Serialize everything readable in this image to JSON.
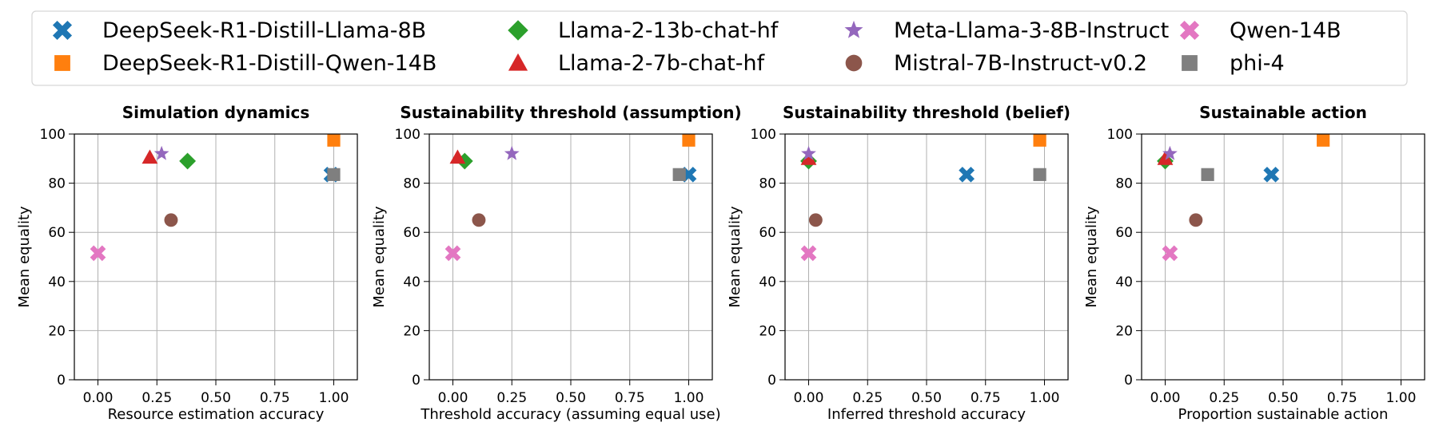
{
  "legend": {
    "placement": "top-center",
    "items": [
      {
        "name": "DeepSeek-R1-Distill-Llama-8B",
        "color": "#1f77b4",
        "marker": "x"
      },
      {
        "name": "DeepSeek-R1-Distill-Qwen-14B",
        "color": "#ff7f0e",
        "marker": "square"
      },
      {
        "name": "Llama-2-13b-chat-hf",
        "color": "#2ca02c",
        "marker": "diamond"
      },
      {
        "name": "Llama-2-7b-chat-hf",
        "color": "#d62728",
        "marker": "triangle"
      },
      {
        "name": "Meta-Llama-3-8B-Instruct",
        "color": "#9467bd",
        "marker": "star"
      },
      {
        "name": "Mistral-7B-Instruct-v0.2",
        "color": "#8c564b",
        "marker": "circle"
      },
      {
        "name": "Qwen-14B",
        "color": "#e377c2",
        "marker": "x"
      },
      {
        "name": "phi-4",
        "color": "#7f7f7f",
        "marker": "square"
      }
    ]
  },
  "chart_data": [
    {
      "type": "scatter",
      "title": "Simulation dynamics",
      "xlabel": "Resource estimation accuracy",
      "ylabel": "Mean equality",
      "xlim": [
        -0.1,
        1.1
      ],
      "ylim": [
        0,
        100
      ],
      "xticks": [
        "0.00",
        "0.25",
        "0.50",
        "0.75",
        "1.00"
      ],
      "yticks": [
        "0",
        "20",
        "40",
        "60",
        "80",
        "100"
      ],
      "grid": true,
      "points": [
        {
          "series": "DeepSeek-R1-Distill-Llama-8B",
          "x": 0.99,
          "y": 83.5
        },
        {
          "series": "DeepSeek-R1-Distill-Qwen-14B",
          "x": 1.0,
          "y": 97.5
        },
        {
          "series": "Llama-2-13b-chat-hf",
          "x": 0.38,
          "y": 89
        },
        {
          "series": "Llama-2-7b-chat-hf",
          "x": 0.22,
          "y": 90.5
        },
        {
          "series": "Meta-Llama-3-8B-Instruct",
          "x": 0.27,
          "y": 92
        },
        {
          "series": "Mistral-7B-Instruct-v0.2",
          "x": 0.31,
          "y": 65
        },
        {
          "series": "Qwen-14B",
          "x": 0.0,
          "y": 51.5
        },
        {
          "series": "phi-4",
          "x": 1.0,
          "y": 83.5
        }
      ]
    },
    {
      "type": "scatter",
      "title": "Sustainability threshold (assumption)",
      "xlabel": "Threshold accuracy (assuming equal use)",
      "ylabel": "Mean equality",
      "xlim": [
        -0.1,
        1.1
      ],
      "ylim": [
        0,
        100
      ],
      "xticks": [
        "0.00",
        "0.25",
        "0.50",
        "0.75",
        "1.00"
      ],
      "yticks": [
        "0",
        "20",
        "40",
        "60",
        "80",
        "100"
      ],
      "grid": true,
      "points": [
        {
          "series": "DeepSeek-R1-Distill-Llama-8B",
          "x": 1.0,
          "y": 83.5
        },
        {
          "series": "DeepSeek-R1-Distill-Qwen-14B",
          "x": 1.0,
          "y": 97.5
        },
        {
          "series": "Llama-2-13b-chat-hf",
          "x": 0.05,
          "y": 89
        },
        {
          "series": "Llama-2-7b-chat-hf",
          "x": 0.02,
          "y": 90.5
        },
        {
          "series": "Meta-Llama-3-8B-Instruct",
          "x": 0.25,
          "y": 92
        },
        {
          "series": "Mistral-7B-Instruct-v0.2",
          "x": 0.11,
          "y": 65
        },
        {
          "series": "Qwen-14B",
          "x": 0.0,
          "y": 51.5
        },
        {
          "series": "phi-4",
          "x": 0.96,
          "y": 83.5
        }
      ]
    },
    {
      "type": "scatter",
      "title": "Sustainability threshold (belief)",
      "xlabel": "Inferred threshold accuracy",
      "ylabel": "Mean equality",
      "xlim": [
        -0.1,
        1.1
      ],
      "ylim": [
        0,
        100
      ],
      "xticks": [
        "0.00",
        "0.25",
        "0.50",
        "0.75",
        "1.00"
      ],
      "yticks": [
        "0",
        "20",
        "40",
        "60",
        "80",
        "100"
      ],
      "grid": true,
      "points": [
        {
          "series": "DeepSeek-R1-Distill-Llama-8B",
          "x": 0.67,
          "y": 83.5
        },
        {
          "series": "DeepSeek-R1-Distill-Qwen-14B",
          "x": 0.98,
          "y": 97.5
        },
        {
          "series": "Llama-2-13b-chat-hf",
          "x": 0.0,
          "y": 89
        },
        {
          "series": "Llama-2-7b-chat-hf",
          "x": 0.0,
          "y": 90
        },
        {
          "series": "Meta-Llama-3-8B-Instruct",
          "x": 0.0,
          "y": 92
        },
        {
          "series": "Mistral-7B-Instruct-v0.2",
          "x": 0.03,
          "y": 65
        },
        {
          "series": "Qwen-14B",
          "x": 0.0,
          "y": 51.5
        },
        {
          "series": "phi-4",
          "x": 0.98,
          "y": 83.5
        }
      ]
    },
    {
      "type": "scatter",
      "title": "Sustainable action",
      "xlabel": "Proportion sustainable action",
      "ylabel": "Mean equality",
      "xlim": [
        -0.1,
        1.1
      ],
      "ylim": [
        0,
        100
      ],
      "xticks": [
        "0.00",
        "0.25",
        "0.50",
        "0.75",
        "1.00"
      ],
      "yticks": [
        "0",
        "20",
        "40",
        "60",
        "80",
        "100"
      ],
      "grid": true,
      "points": [
        {
          "series": "DeepSeek-R1-Distill-Llama-8B",
          "x": 0.45,
          "y": 83.5
        },
        {
          "series": "DeepSeek-R1-Distill-Qwen-14B",
          "x": 0.67,
          "y": 97.5
        },
        {
          "series": "Llama-2-13b-chat-hf",
          "x": 0.0,
          "y": 89
        },
        {
          "series": "Llama-2-7b-chat-hf",
          "x": 0.0,
          "y": 90
        },
        {
          "series": "Meta-Llama-3-8B-Instruct",
          "x": 0.02,
          "y": 92
        },
        {
          "series": "Mistral-7B-Instruct-v0.2",
          "x": 0.13,
          "y": 65
        },
        {
          "series": "Qwen-14B",
          "x": 0.02,
          "y": 51.5
        },
        {
          "series": "phi-4",
          "x": 0.18,
          "y": 83.5
        }
      ]
    }
  ]
}
